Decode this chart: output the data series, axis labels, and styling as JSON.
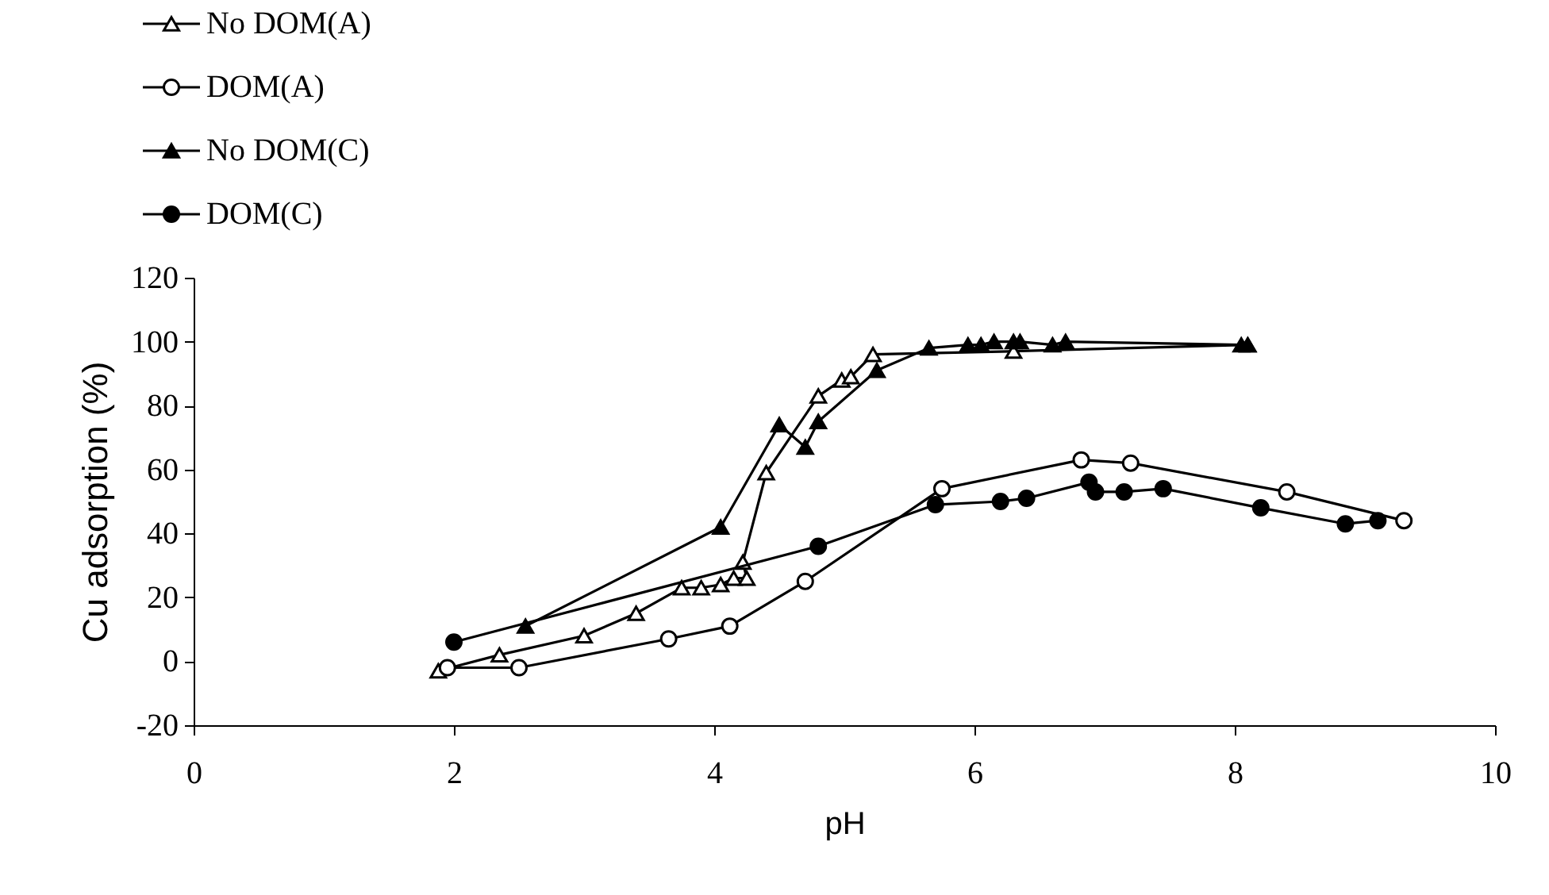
{
  "chart_data": {
    "type": "line",
    "xlabel": "pH",
    "ylabel": "Cu adsorption  (%)",
    "xlim": [
      0,
      10
    ],
    "xticks": [
      0,
      2,
      4,
      6,
      8,
      10
    ],
    "ylim": [
      -20,
      120
    ],
    "yticks": [
      -20,
      0,
      20,
      40,
      60,
      80,
      100,
      120
    ],
    "grid": false,
    "legend": "top left",
    "line_style": "solid",
    "series": [
      {
        "name": "No DOM(A)",
        "color": "#ffffff",
        "marker": "triangle",
        "x": [
          1.88,
          2.35,
          3.0,
          3.4,
          3.75,
          3.9,
          4.05,
          4.15,
          4.25,
          4.22,
          4.4,
          4.8,
          4.98,
          5.05,
          5.22,
          6.3,
          8.1
        ],
        "values": [
          -3,
          2,
          8,
          15,
          23,
          23,
          24,
          26,
          26,
          31,
          59,
          83,
          88,
          89,
          96,
          97,
          99
        ]
      },
      {
        "name": "DOM(A)",
        "color": "#ffffff",
        "marker": "circle",
        "x": [
          1.95,
          2.5,
          3.65,
          4.12,
          4.7,
          5.75,
          6.82,
          7.2,
          8.4,
          9.3
        ],
        "values": [
          -2,
          -2,
          7,
          11,
          25,
          54,
          63,
          62,
          53,
          44
        ]
      },
      {
        "name": "No DOM(C)",
        "color": "#000000",
        "marker": "triangle",
        "x": [
          2.55,
          4.05,
          4.5,
          4.7,
          4.8,
          5.25,
          5.65,
          5.95,
          6.05,
          6.15,
          6.3,
          6.35,
          6.6,
          6.7,
          8.05,
          8.1
        ],
        "values": [
          11,
          42,
          74,
          67,
          75,
          91,
          98,
          99,
          99,
          100,
          100,
          100,
          99,
          100,
          99,
          99
        ]
      },
      {
        "name": "DOM(C)",
        "color": "#000000",
        "marker": "circle",
        "x": [
          2.0,
          4.8,
          5.7,
          6.2,
          6.4,
          6.88,
          6.93,
          7.15,
          7.45,
          8.2,
          8.85,
          9.1
        ],
        "values": [
          6,
          36,
          49,
          50,
          51,
          56,
          53,
          53,
          54,
          48,
          43,
          44
        ]
      }
    ]
  }
}
